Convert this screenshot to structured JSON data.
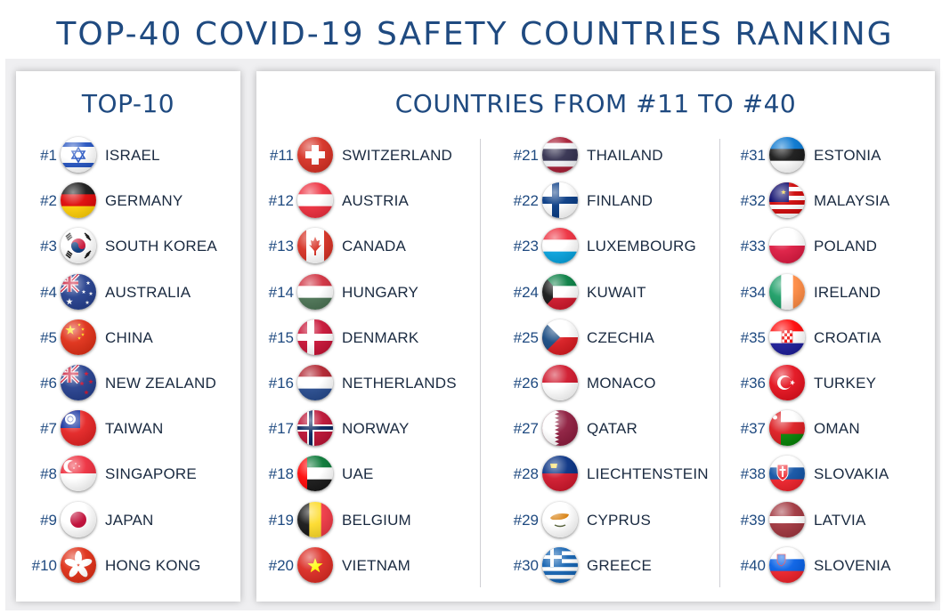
{
  "title": "TOP-40 COVID-19 SAFETY COUNTRIES RANKING",
  "top10_heading": "TOP-10",
  "rest_heading": "COUNTRIES FROM #11 TO #40",
  "top10": [
    {
      "rank": "#1",
      "name": "ISRAEL",
      "flag": "israel"
    },
    {
      "rank": "#2",
      "name": "GERMANY",
      "flag": "germany"
    },
    {
      "rank": "#3",
      "name": "SOUTH KOREA",
      "flag": "south-korea"
    },
    {
      "rank": "#4",
      "name": "AUSTRALIA",
      "flag": "australia"
    },
    {
      "rank": "#5",
      "name": "CHINA",
      "flag": "china"
    },
    {
      "rank": "#6",
      "name": "NEW ZEALAND",
      "flag": "new-zealand"
    },
    {
      "rank": "#7",
      "name": "TAIWAN",
      "flag": "taiwan"
    },
    {
      "rank": "#8",
      "name": "SINGAPORE",
      "flag": "singapore"
    },
    {
      "rank": "#9",
      "name": "JAPAN",
      "flag": "japan"
    },
    {
      "rank": "#10",
      "name": "HONG KONG",
      "flag": "hong-kong"
    }
  ],
  "col1": [
    {
      "rank": "#11",
      "name": "SWITZERLAND",
      "flag": "switzerland"
    },
    {
      "rank": "#12",
      "name": "AUSTRIA",
      "flag": "austria"
    },
    {
      "rank": "#13",
      "name": "CANADA",
      "flag": "canada"
    },
    {
      "rank": "#14",
      "name": "HUNGARY",
      "flag": "hungary"
    },
    {
      "rank": "#15",
      "name": "DENMARK",
      "flag": "denmark"
    },
    {
      "rank": "#16",
      "name": "NETHERLANDS",
      "flag": "netherlands"
    },
    {
      "rank": "#17",
      "name": "NORWAY",
      "flag": "norway"
    },
    {
      "rank": "#18",
      "name": "UAE",
      "flag": "uae"
    },
    {
      "rank": "#19",
      "name": "BELGIUM",
      "flag": "belgium"
    },
    {
      "rank": "#20",
      "name": "VIETNAM",
      "flag": "vietnam"
    }
  ],
  "col2": [
    {
      "rank": "#21",
      "name": "THAILAND",
      "flag": "thailand"
    },
    {
      "rank": "#22",
      "name": "FINLAND",
      "flag": "finland"
    },
    {
      "rank": "#23",
      "name": "LUXEMBOURG",
      "flag": "luxembourg"
    },
    {
      "rank": "#24",
      "name": "KUWAIT",
      "flag": "kuwait"
    },
    {
      "rank": "#25",
      "name": "CZECHIA",
      "flag": "czechia"
    },
    {
      "rank": "#26",
      "name": "MONACO",
      "flag": "monaco"
    },
    {
      "rank": "#27",
      "name": "QATAR",
      "flag": "qatar"
    },
    {
      "rank": "#28",
      "name": "LIECHTENSTEIN",
      "flag": "liechtenstein"
    },
    {
      "rank": "#29",
      "name": "CYPRUS",
      "flag": "cyprus"
    },
    {
      "rank": "#30",
      "name": "GREECE",
      "flag": "greece"
    }
  ],
  "col3": [
    {
      "rank": "#31",
      "name": "ESTONIA",
      "flag": "estonia"
    },
    {
      "rank": "#32",
      "name": "MALAYSIA",
      "flag": "malaysia"
    },
    {
      "rank": "#33",
      "name": "POLAND",
      "flag": "poland"
    },
    {
      "rank": "#34",
      "name": "IRELAND",
      "flag": "ireland"
    },
    {
      "rank": "#35",
      "name": "CROATIA",
      "flag": "croatia"
    },
    {
      "rank": "#36",
      "name": "TURKEY",
      "flag": "turkey"
    },
    {
      "rank": "#37",
      "name": "OMAN",
      "flag": "oman"
    },
    {
      "rank": "#38",
      "name": "SLOVAKIA",
      "flag": "slovakia"
    },
    {
      "rank": "#39",
      "name": "LATVIA",
      "flag": "latvia"
    },
    {
      "rank": "#40",
      "name": "SLOVENIA",
      "flag": "slovenia"
    }
  ]
}
